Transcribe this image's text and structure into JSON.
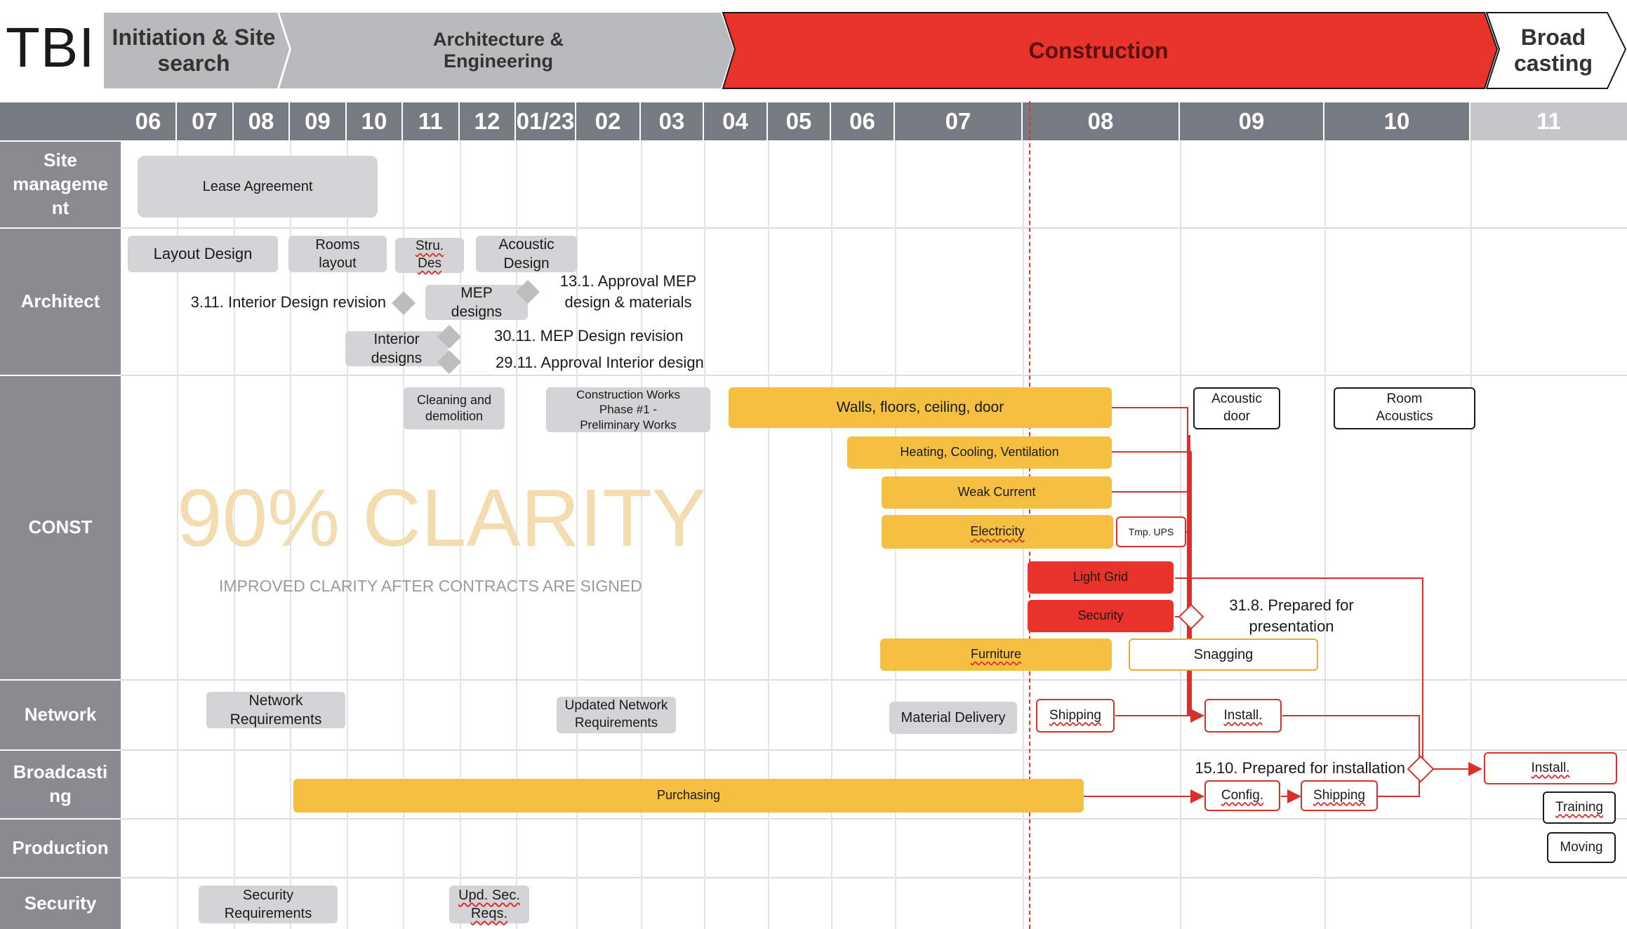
{
  "logo": "TBI",
  "phases": {
    "p1": "Initiation & Site\nsearch",
    "p2": "Architecture &\nEngineering",
    "p3": "Construction",
    "p4": "Broad\ncasting"
  },
  "months": [
    "06",
    "07",
    "08",
    "09",
    "10",
    "11",
    "12",
    "01/23",
    "02",
    "03",
    "04",
    "05",
    "06",
    "07",
    "08",
    "09",
    "10",
    "11"
  ],
  "rows": [
    "Site\nmanageme\nnt",
    "Architect",
    "CONST",
    "Network",
    "Broadcasti\nng",
    "Production",
    "Security"
  ],
  "tasks": {
    "lease": "Lease Agreement",
    "layout_design": "Layout Design",
    "rooms_layout": "Rooms\nlayout",
    "stru_des": "Stru.\nDes",
    "acoustic_design": "Acoustic\nDesign",
    "mep_designs": "MEP\ndesigns",
    "interior_designs": "Interior\ndesigns",
    "cleaning": "Cleaning and\ndemolition",
    "construction_works": "Construction Works\nPhase #1 -\nPreliminary Works",
    "walls": "Walls, floors, ceiling, door",
    "hvac": "Heating, Cooling, Ventilation",
    "weak_current": "Weak Current",
    "electricity": "Electricity",
    "tmp_ups": "Tmp. UPS",
    "light_grid": "Light Grid",
    "security": "Security",
    "furniture": "Furniture",
    "snagging": "Snagging",
    "acoustic_door": "Acoustic\ndoor",
    "room_acoustics": "Room\nAcoustics",
    "network_req": "Network\nRequirements",
    "updated_network_req": "Updated Network\nRequirements",
    "material_delivery": "Material Delivery",
    "shipping_net": "Shipping",
    "install_net": "Install.",
    "purchasing": "Purchasing",
    "config": "Config.",
    "shipping_bc": "Shipping",
    "install_bc": "Install.",
    "training": "Training",
    "moving": "Moving",
    "security_req": "Security\nRequirements",
    "upd_sec_reqs": "Upd. Sec.\nReqs."
  },
  "milestones": {
    "m_3_11": "3.11. Interior Design revision",
    "m_13_1": "13.1. Approval MEP\ndesign & materials",
    "m_30_11": "30.11. MEP Design revision",
    "m_29_11": "29.11. Approval Interior design",
    "m_31_8": "31.8. Prepared for\npresentation",
    "m_15_10": "15.10. Prepared for installation"
  },
  "watermark": {
    "big": "90% CLARITY",
    "small": "IMPROVED CLARITY AFTER CONTRACTS ARE SIGNED"
  },
  "colors": {
    "grey_phase": "#b9babc",
    "construction_red": "#e8322a",
    "month_bar": "#767b82",
    "month_light": "#c4c6c9",
    "row_label_bg": "#888c91",
    "task_grey": "#d4d4d6",
    "task_yellow": "#f5bf42",
    "task_red": "#e8322a",
    "connector_red": "#d9302c",
    "watermark": "#f3ddb0"
  }
}
